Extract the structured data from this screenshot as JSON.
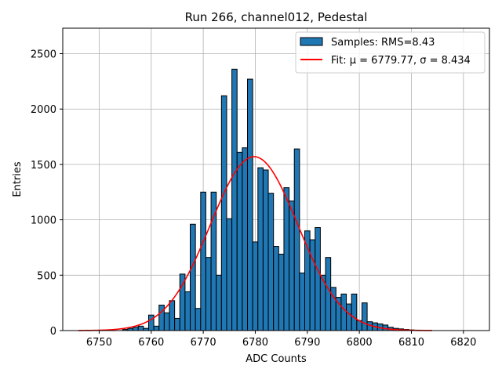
{
  "chart_data": {
    "type": "bar",
    "title": "Run 266, channel012, Pedestal",
    "xlabel": "ADC Counts",
    "ylabel": "Entries",
    "xlim": [
      6743,
      6825
    ],
    "ylim": [
      0,
      2730
    ],
    "xticks": [
      6750,
      6760,
      6770,
      6780,
      6790,
      6800,
      6810,
      6820
    ],
    "yticks": [
      0,
      500,
      1000,
      1500,
      2000,
      2500
    ],
    "grid": true,
    "legend_position": "top-right",
    "bin_width": 1,
    "bins": [
      [
        6755,
        10
      ],
      [
        6756,
        20
      ],
      [
        6757,
        30
      ],
      [
        6758,
        40
      ],
      [
        6759,
        20
      ],
      [
        6760,
        140
      ],
      [
        6761,
        40
      ],
      [
        6762,
        230
      ],
      [
        6763,
        160
      ],
      [
        6764,
        270
      ],
      [
        6765,
        110
      ],
      [
        6766,
        510
      ],
      [
        6767,
        350
      ],
      [
        6768,
        960
      ],
      [
        6769,
        200
      ],
      [
        6770,
        1250
      ],
      [
        6771,
        660
      ],
      [
        6772,
        1250
      ],
      [
        6773,
        500
      ],
      [
        6774,
        2120
      ],
      [
        6775,
        1010
      ],
      [
        6776,
        2360
      ],
      [
        6777,
        1610
      ],
      [
        6778,
        1650
      ],
      [
        6779,
        2270
      ],
      [
        6780,
        800
      ],
      [
        6781,
        1470
      ],
      [
        6782,
        1450
      ],
      [
        6783,
        1240
      ],
      [
        6784,
        760
      ],
      [
        6785,
        690
      ],
      [
        6786,
        1290
      ],
      [
        6787,
        1170
      ],
      [
        6788,
        1640
      ],
      [
        6789,
        520
      ],
      [
        6790,
        900
      ],
      [
        6791,
        820
      ],
      [
        6792,
        930
      ],
      [
        6793,
        500
      ],
      [
        6794,
        660
      ],
      [
        6795,
        390
      ],
      [
        6796,
        300
      ],
      [
        6797,
        330
      ],
      [
        6798,
        240
      ],
      [
        6799,
        330
      ],
      [
        6800,
        90
      ],
      [
        6801,
        250
      ],
      [
        6802,
        80
      ],
      [
        6803,
        70
      ],
      [
        6804,
        60
      ],
      [
        6805,
        50
      ],
      [
        6806,
        30
      ],
      [
        6807,
        20
      ],
      [
        6808,
        15
      ],
      [
        6809,
        10
      ],
      [
        6810,
        6
      ],
      [
        6811,
        4
      ]
    ],
    "fit": {
      "type": "gaussian",
      "mu": 6779.77,
      "sigma": 8.434,
      "amplitude": 1570,
      "x_range": [
        6746,
        6814
      ]
    },
    "series": [
      {
        "name": "Samples: RMS=8.43",
        "kind": "histogram",
        "color": "#1f77b4",
        "edge_color": "#000000"
      },
      {
        "name": "Fit: μ = 6779.77, σ = 8.434",
        "kind": "line",
        "color": "#ff0000"
      }
    ],
    "legend": {
      "entries": [
        "Samples: RMS=8.43",
        "Fit: μ = 6779.77, σ = 8.434"
      ]
    }
  }
}
